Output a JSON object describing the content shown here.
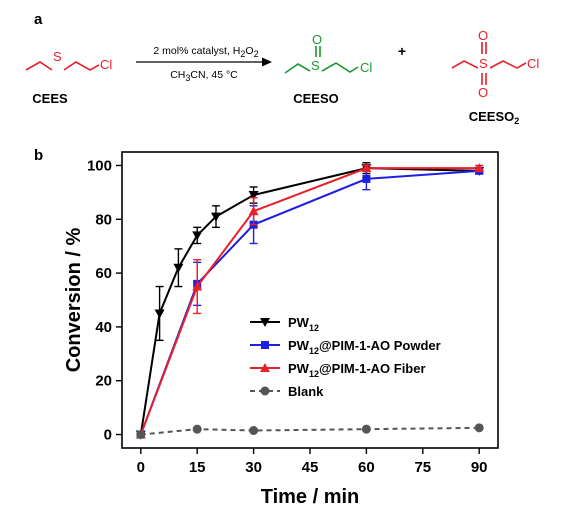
{
  "panel_a": {
    "label": "a",
    "reactant": "CEES",
    "condition_top": "2 mol% catalyst, H",
    "condition_top_sub": "2",
    "condition_top_tail": "O",
    "condition_top_sub2": "2",
    "condition_bottom": "CH",
    "condition_bottom_sub": "3",
    "condition_bottom_tail": "CN, 45 °C",
    "product1": "CEESO",
    "plus": "+",
    "product2": "CEESO",
    "product2_sub": "2",
    "atom_s": "S",
    "atom_cl": "Cl",
    "atom_o": "O",
    "colors": {
      "reactant": "#e8202a",
      "product1": "#1a9a2e",
      "product2": "#e8202a",
      "text": "#000000"
    }
  },
  "panel_b": {
    "label": "b"
  },
  "chart_data": {
    "type": "line",
    "xlabel": "Time / min",
    "ylabel": "Conversion / %",
    "xlim": [
      -5,
      95
    ],
    "ylim": [
      -5,
      105
    ],
    "xticks": [
      0,
      15,
      30,
      45,
      60,
      75,
      90
    ],
    "yticks": [
      0,
      20,
      40,
      60,
      80,
      100
    ],
    "legend_position": "center-right",
    "series": [
      {
        "name": "PW",
        "name_sub": "12",
        "name_tail": "",
        "color": "#000000",
        "marker": "triangle-down",
        "line": "solid",
        "x": [
          0,
          5,
          10,
          15,
          20,
          30,
          60,
          90
        ],
        "y": [
          0,
          45,
          62,
          74,
          81,
          89,
          99,
          98
        ],
        "err": [
          0,
          10,
          7,
          3,
          4,
          3,
          2,
          1
        ]
      },
      {
        "name": "PW",
        "name_sub": "12",
        "name_tail": "@PIM-1-AO Powder",
        "color": "#1f1fe0",
        "marker": "square",
        "line": "solid",
        "x": [
          0,
          15,
          30,
          60,
          90
        ],
        "y": [
          0,
          56,
          78,
          95,
          98
        ],
        "err": [
          0,
          8,
          7,
          4,
          1
        ]
      },
      {
        "name": "PW",
        "name_sub": "12",
        "name_tail": "@PIM-1-AO Fiber",
        "color": "#e8202a",
        "marker": "triangle-up",
        "line": "solid",
        "x": [
          0,
          15,
          30,
          60,
          90
        ],
        "y": [
          0,
          55,
          83,
          99,
          99
        ],
        "err": [
          0,
          10,
          5,
          1,
          1
        ]
      },
      {
        "name": "Blank",
        "name_sub": "",
        "name_tail": "",
        "color": "#555555",
        "marker": "circle",
        "line": "dashed",
        "x": [
          0,
          15,
          30,
          60,
          90
        ],
        "y": [
          0,
          2,
          1.5,
          2,
          2.5
        ],
        "err": [
          0,
          0,
          0,
          0,
          0
        ]
      }
    ]
  }
}
